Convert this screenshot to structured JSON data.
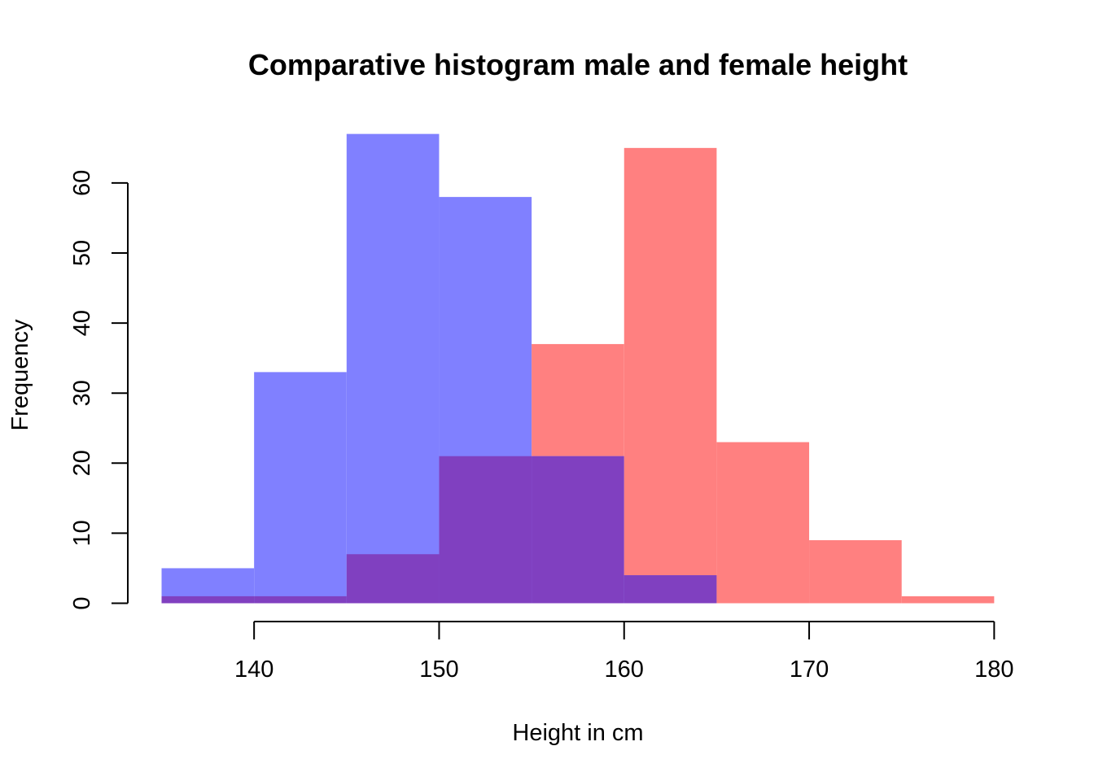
{
  "chart_data": {
    "type": "bar",
    "title": "Comparative histogram male and female height",
    "xlabel": "Height in cm",
    "ylabel": "Frequency",
    "xlim": [
      135,
      180
    ],
    "ylim": [
      0,
      67
    ],
    "x_ticks": [
      140,
      150,
      160,
      170,
      180
    ],
    "y_ticks": [
      0,
      10,
      20,
      30,
      40,
      50,
      60
    ],
    "bin_width": 5,
    "overlap_color": "#8040C0",
    "series": [
      {
        "color": "#8080FF",
        "bins": [
          {
            "start": 135,
            "end": 140,
            "count": 5
          },
          {
            "start": 140,
            "end": 145,
            "count": 33
          },
          {
            "start": 145,
            "end": 150,
            "count": 67
          },
          {
            "start": 150,
            "end": 155,
            "count": 58
          },
          {
            "start": 155,
            "end": 160,
            "count": 21
          },
          {
            "start": 160,
            "end": 165,
            "count": 4
          }
        ]
      },
      {
        "color": "#FF8080",
        "bins": [
          {
            "start": 135,
            "end": 140,
            "count": 1
          },
          {
            "start": 140,
            "end": 145,
            "count": 1
          },
          {
            "start": 145,
            "end": 150,
            "count": 7
          },
          {
            "start": 150,
            "end": 155,
            "count": 21
          },
          {
            "start": 155,
            "end": 160,
            "count": 37
          },
          {
            "start": 160,
            "end": 165,
            "count": 65
          },
          {
            "start": 165,
            "end": 170,
            "count": 23
          },
          {
            "start": 170,
            "end": 175,
            "count": 9
          },
          {
            "start": 175,
            "end": 180,
            "count": 1
          }
        ]
      }
    ]
  }
}
